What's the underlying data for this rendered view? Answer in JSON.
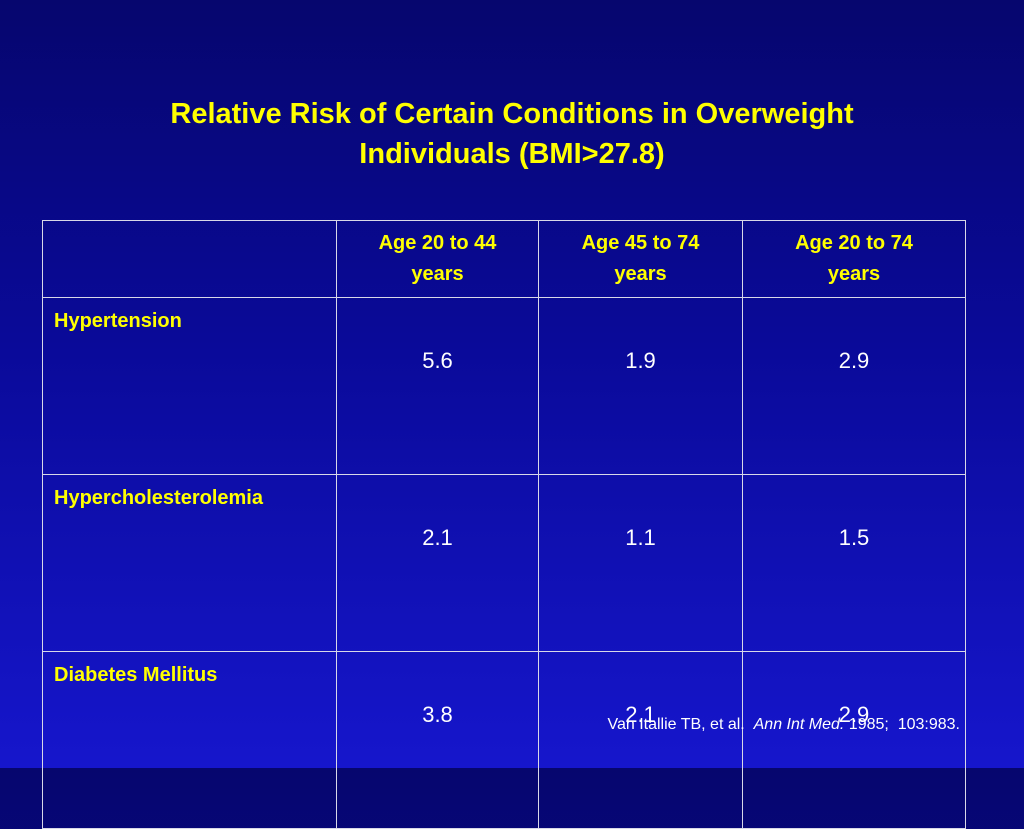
{
  "title": {
    "line1": "Relative Risk of Certain Conditions in Overweight",
    "line2": "Individuals (BMI>27.8)"
  },
  "table": {
    "corner": "",
    "columns": [
      "Age 20 to 44 years",
      "Age 45 to 74 years",
      "Age 20 to 74 years"
    ],
    "rows": [
      {
        "label": "Hypertension",
        "values": [
          "5.6",
          "1.9",
          "2.9"
        ]
      },
      {
        "label": "Hypercholesterolemia",
        "values": [
          "2.1",
          "1.1",
          "1.5"
        ]
      },
      {
        "label": "Diabetes Mellitus",
        "values": [
          "3.8",
          "2.1",
          "2.9"
        ]
      }
    ]
  },
  "citation": {
    "authors": "Van Itallie TB, et al.  ",
    "journal": "Ann Int Med.",
    "details": " 1985;  103:983."
  },
  "colors": {
    "title": "#ffff00",
    "text": "#ffffff",
    "background_top": "#06066e",
    "background_bottom": "#1616cc"
  }
}
